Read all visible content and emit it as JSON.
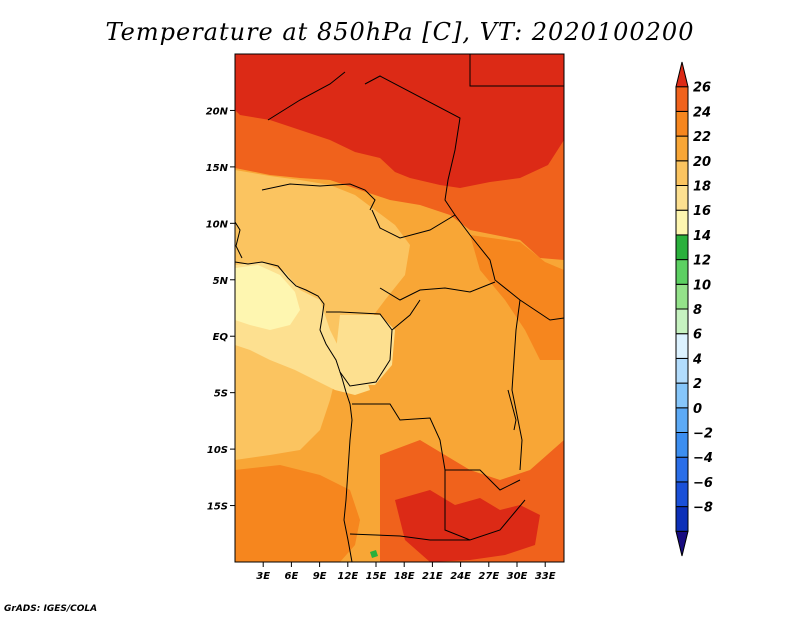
{
  "title": "Temperature at 850hPa [C], VT: 2020100200",
  "credit": "GrADS: IGES/COLA",
  "map": {
    "lat_range": [
      -20,
      25
    ],
    "lon_range": [
      0,
      35
    ],
    "lat_ticks": [
      {
        "value": 20,
        "label": "20N"
      },
      {
        "value": 15,
        "label": "15N"
      },
      {
        "value": 10,
        "label": "10N"
      },
      {
        "value": 5,
        "label": "5N"
      },
      {
        "value": 0,
        "label": "EQ"
      },
      {
        "value": -5,
        "label": "5S"
      },
      {
        "value": -10,
        "label": "10S"
      },
      {
        "value": -15,
        "label": "15S"
      }
    ],
    "lon_ticks": [
      {
        "value": 3,
        "label": "3E"
      },
      {
        "value": 6,
        "label": "6E"
      },
      {
        "value": 9,
        "label": "9E"
      },
      {
        "value": 12,
        "label": "12E"
      },
      {
        "value": 15,
        "label": "15E"
      },
      {
        "value": 18,
        "label": "18E"
      },
      {
        "value": 21,
        "label": "21E"
      },
      {
        "value": 24,
        "label": "24E"
      },
      {
        "value": 27,
        "label": "27E"
      },
      {
        "value": 30,
        "label": "30E"
      },
      {
        "value": 33,
        "label": "33E"
      }
    ]
  },
  "colorbar": {
    "levels": [
      "26",
      "24",
      "22",
      "20",
      "18",
      "16",
      "14",
      "12",
      "10",
      "8",
      "6",
      "4",
      "2",
      "0",
      "−2",
      "−4",
      "−6",
      "−8"
    ],
    "colors": [
      "#180c80",
      "#0c30b8",
      "#1a50d8",
      "#2a6ee8",
      "#3c8ef0",
      "#5caaf6",
      "#86c6fa",
      "#b2dcfc",
      "#dcf2ff",
      "#c6f2c0",
      "#94e28a",
      "#5cd062",
      "#2ab03c",
      "#fef6b0",
      "#fde090",
      "#fbc460",
      "#f8a636",
      "#f6861e",
      "#f0621c",
      "#dc2a16"
    ]
  },
  "colors": {
    "very_hot": "#dc2a16",
    "hot": "#f0621c",
    "warm_orange": "#f6861e",
    "orange": "#f8a636",
    "light_orange": "#fbc460",
    "yellow_orange": "#fde090",
    "pale_yellow": "#fef6b0",
    "green": "#2ab03c",
    "border": "#000000"
  }
}
